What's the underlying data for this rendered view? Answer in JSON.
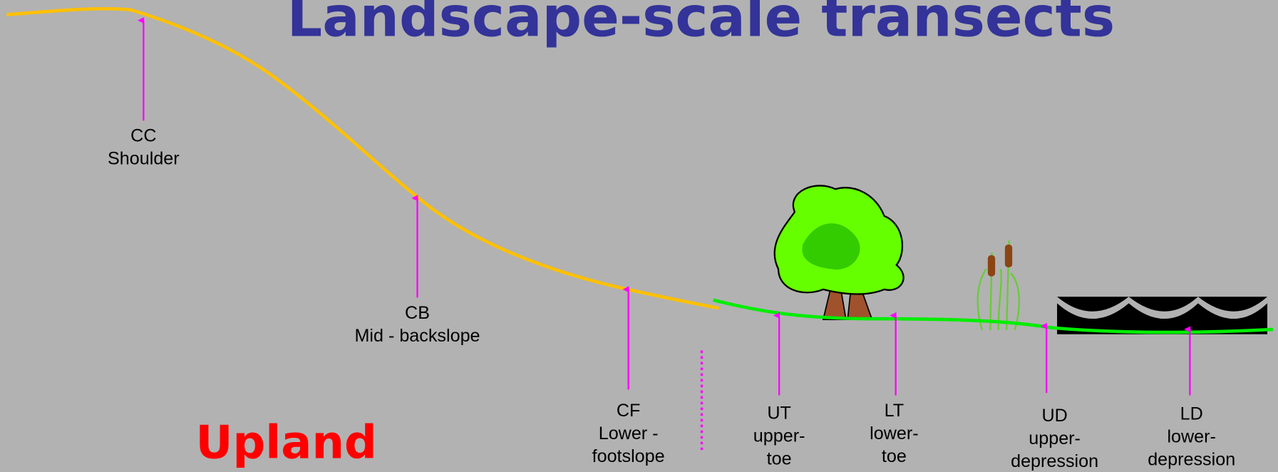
{
  "title": "Landscape-scale transects",
  "region": "Upland",
  "positions": [
    {
      "lines": [
        "CC",
        "Shoulder"
      ]
    },
    {
      "lines": [
        "CB",
        "Mid - backslope"
      ]
    },
    {
      "lines": [
        "CF",
        "Lower -",
        "footslope"
      ]
    },
    {
      "lines": [
        "UT",
        "upper-",
        "toe"
      ]
    },
    {
      "lines": [
        "LT",
        "lower-",
        "toe"
      ]
    },
    {
      "lines": [
        "UD",
        "upper-",
        "depression"
      ]
    },
    {
      "lines": [
        "LD",
        "lower-",
        "depression"
      ]
    }
  ]
}
